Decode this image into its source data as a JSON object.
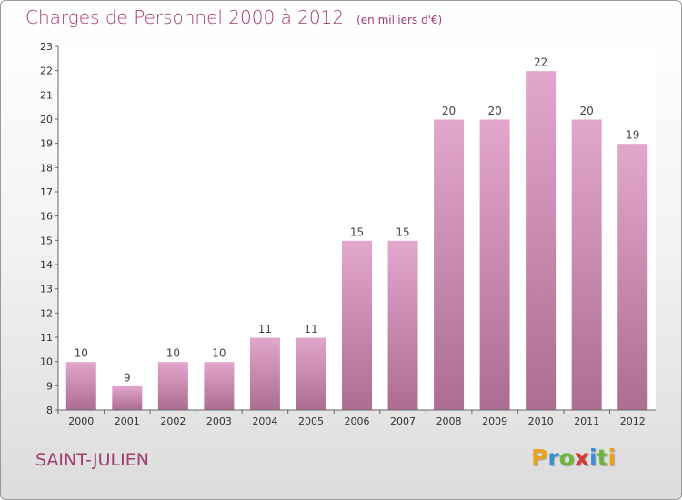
{
  "title": "Charges de Personnel 2000 à 2012",
  "unit_note": "(en milliers d'€)",
  "commune": "SAINT-JULIEN",
  "brand": {
    "letters": [
      {
        "ch": "P",
        "color": "#e8a21c"
      },
      {
        "ch": "r",
        "color": "#3b8fd0"
      },
      {
        "ch": "o",
        "color": "#6cb33f"
      },
      {
        "ch": "x",
        "color": "#d83a3a"
      },
      {
        "ch": "i",
        "color": "#3b8fd0"
      },
      {
        "ch": "t",
        "color": "#6cb33f"
      },
      {
        "ch": "i",
        "color": "#e8a21c"
      }
    ]
  },
  "chart_data": {
    "type": "bar",
    "categories": [
      "2000",
      "2001",
      "2002",
      "2003",
      "2004",
      "2005",
      "2006",
      "2007",
      "2008",
      "2009",
      "2010",
      "2011",
      "2012"
    ],
    "values": [
      10,
      9,
      10,
      10,
      11,
      11,
      15,
      15,
      20,
      20,
      22,
      20,
      19
    ],
    "ylim": [
      8,
      23
    ],
    "yticks": [
      8,
      9,
      10,
      11,
      12,
      13,
      14,
      15,
      16,
      17,
      18,
      19,
      20,
      21,
      22,
      23
    ],
    "grid": false,
    "bar_color_top": "#e3a6cc",
    "bar_color_bottom": "#ad6d93"
  }
}
